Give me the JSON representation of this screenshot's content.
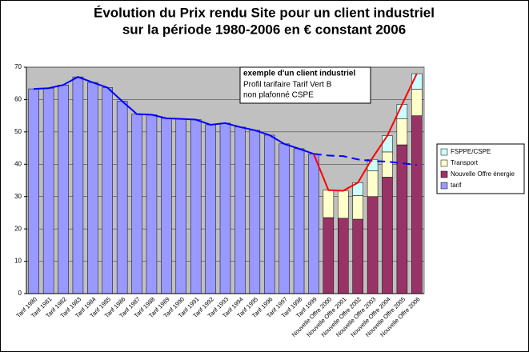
{
  "chart_data": {
    "type": "bar",
    "title": [
      "Évolution du Prix rendu Site pour un client  industriel",
      "sur la période 1980-2006 en € constant 2006"
    ],
    "categories": [
      "Tarif 1980",
      "Tarif 1981",
      "Tarif 1982",
      "Tarif 1983",
      "Tarif 1984",
      "Tarif 1985",
      "Tarif 1986",
      "Tarif 1987",
      "Tarif 1988",
      "Tarif 1989",
      "Tarif 1990",
      "Tarif 1991",
      "Tarif 1992",
      "Tarif 1993",
      "Tarif 1994",
      "Tarif 1995",
      "Tarif 1996",
      "Tarif 1997",
      "Tarif 1998",
      "Tarif 1999",
      "Nouvelle Offre 2000",
      "Nouvelle Offre 2001",
      "Nouvelle Offre 2002",
      "Nouvelle Offre 2003",
      "Nouvelle Offre 2004",
      "Nouvelle Offre 2005",
      "Nouvelle Offre 2006"
    ],
    "stacked": true,
    "series": [
      {
        "name": "tarif",
        "color": "#9999ff",
        "values": [
          63.3,
          63.5,
          64.5,
          67,
          65.3,
          63.7,
          59.5,
          55.5,
          55.3,
          54.2,
          54,
          53.8,
          52.2,
          52.7,
          51.5,
          50.5,
          49,
          46.3,
          44.8,
          43.2,
          null,
          null,
          null,
          null,
          null,
          null,
          null
        ]
      },
      {
        "name": "Nouvelle Offre énergie",
        "color": "#993366",
        "values": [
          null,
          null,
          null,
          null,
          null,
          null,
          null,
          null,
          null,
          null,
          null,
          null,
          null,
          null,
          null,
          null,
          null,
          null,
          null,
          null,
          23.5,
          23.3,
          23,
          30,
          36,
          46,
          55
        ]
      },
      {
        "name": "Transport",
        "color": "#ffffcc",
        "values": [
          null,
          null,
          null,
          null,
          null,
          null,
          null,
          null,
          null,
          null,
          null,
          null,
          null,
          null,
          null,
          null,
          null,
          null,
          null,
          null,
          8.5,
          8.5,
          7.3,
          8,
          7.8,
          8,
          8.2
        ]
      },
      {
        "name": "FSPPE/CSPE",
        "color": "#ccffff",
        "values": [
          null,
          null,
          null,
          null,
          null,
          null,
          null,
          null,
          null,
          null,
          null,
          null,
          null,
          null,
          null,
          null,
          null,
          null,
          null,
          null,
          0,
          0,
          4,
          3.5,
          5,
          4.5,
          4.8
        ]
      }
    ],
    "lines": [
      {
        "color": "#0000ff",
        "dashed": false,
        "values": [
          63.3,
          63.5,
          64.5,
          67,
          65.3,
          63.7,
          59.5,
          55.5,
          55.3,
          54.2,
          54,
          53.8,
          52.2,
          52.7,
          51.5,
          50.5,
          49,
          46.3,
          44.8,
          43.2,
          null,
          null,
          null,
          null,
          null,
          null,
          null
        ]
      },
      {
        "color": "#0000ff",
        "dashed": true,
        "values": [
          null,
          null,
          null,
          null,
          null,
          null,
          null,
          null,
          null,
          null,
          null,
          null,
          null,
          null,
          null,
          null,
          null,
          null,
          null,
          43.2,
          42.7,
          42.5,
          41.5,
          41,
          40.8,
          40.3,
          39.8
        ]
      },
      {
        "color": "#ff0000",
        "dashed": false,
        "values": [
          null,
          null,
          null,
          null,
          null,
          null,
          null,
          null,
          null,
          null,
          null,
          null,
          null,
          null,
          null,
          null,
          null,
          null,
          null,
          43.2,
          32,
          31.8,
          34.3,
          42,
          48.8,
          58.5,
          68
        ]
      }
    ],
    "annotation": {
      "title": "exemple d'un client industriel",
      "lines": [
        "Profil tarifaire Tarif Vert B",
        "non plafonné CSPE"
      ]
    },
    "ylim": [
      0,
      70
    ],
    "yticks": [
      0,
      10,
      20,
      30,
      40,
      50,
      60,
      70
    ],
    "grid": true,
    "legend": "right"
  }
}
